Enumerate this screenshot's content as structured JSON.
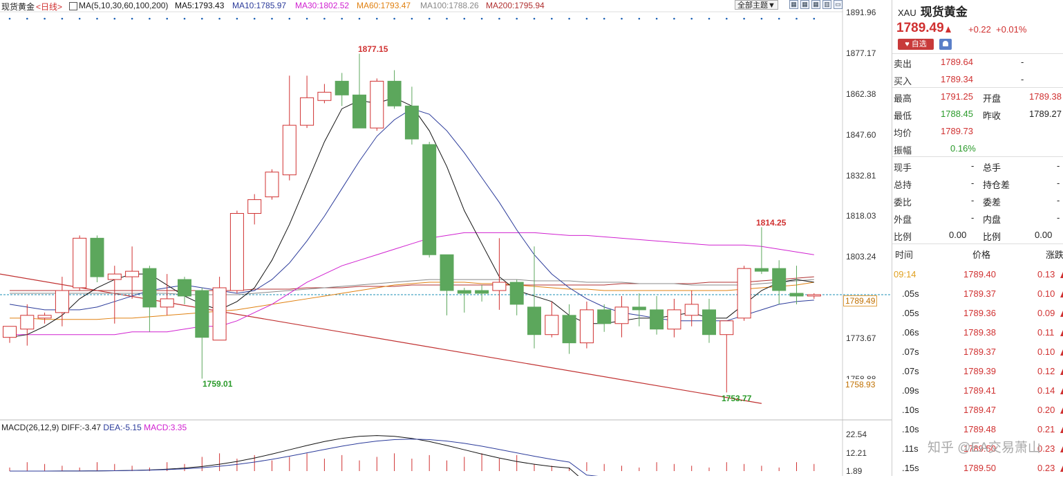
{
  "header": {
    "symbol": "现货黄金",
    "period": "<日线>",
    "ma_label": "MA(5,10,30,60,100,200)",
    "ma5": "MA5:1793.43",
    "ma10": "MA10:1785.97",
    "ma30": "MA30:1802.52",
    "ma60": "MA60:1793.47",
    "ma100": "MA100:1788.26",
    "ma200": "MA200:1795.94",
    "theme_button": "全部主题▼",
    "icons": [
      "grid-icon",
      "grid-add-icon",
      "grid-remove-icon",
      "window-icon"
    ]
  },
  "colors": {
    "up": "#d03030",
    "down": "#2a9a2a",
    "candle_down_fill": "#5ca75c",
    "ma5": "#111111",
    "ma10": "#2a3a9a",
    "ma30": "#d020d0",
    "ma60": "#e08010",
    "ma100": "#888888",
    "ma200": "#b03030"
  },
  "chart_data": {
    "type": "candlestick",
    "y_axis_labels": [
      "1891.96",
      "1877.17",
      "1862.38",
      "1847.60",
      "1832.81",
      "1818.03",
      "1803.24",
      "1773.67",
      "1758.88"
    ],
    "current_price_tag": "1789.49",
    "low_price_tag": "1758.93",
    "annotations": {
      "high1": "1877.15",
      "high2": "1814.25",
      "low1": "1759.01",
      "low2": "1753.77"
    },
    "candles": [
      {
        "o": 1774,
        "h": 1778,
        "l": 1772,
        "c": 1778
      },
      {
        "o": 1777,
        "h": 1786,
        "l": 1771,
        "c": 1782
      },
      {
        "o": 1781,
        "h": 1783,
        "l": 1779,
        "c": 1782
      },
      {
        "o": 1783,
        "h": 1796,
        "l": 1778,
        "c": 1791
      },
      {
        "o": 1792,
        "h": 1811,
        "l": 1791,
        "c": 1810
      },
      {
        "o": 1810,
        "h": 1811,
        "l": 1794,
        "c": 1796
      },
      {
        "o": 1795,
        "h": 1800,
        "l": 1779,
        "c": 1797
      },
      {
        "o": 1796,
        "h": 1807,
        "l": 1788,
        "c": 1798
      },
      {
        "o": 1799,
        "h": 1800,
        "l": 1776,
        "c": 1785
      },
      {
        "o": 1785,
        "h": 1797,
        "l": 1782,
        "c": 1788
      },
      {
        "o": 1795,
        "h": 1796,
        "l": 1786,
        "c": 1789
      },
      {
        "o": 1791,
        "h": 1792,
        "l": 1759,
        "c": 1774
      },
      {
        "o": 1773,
        "h": 1796,
        "l": 1773,
        "c": 1792
      },
      {
        "o": 1791,
        "h": 1820,
        "l": 1790,
        "c": 1819
      },
      {
        "o": 1819,
        "h": 1826,
        "l": 1815,
        "c": 1824
      },
      {
        "o": 1825,
        "h": 1835,
        "l": 1824,
        "c": 1834
      },
      {
        "o": 1833,
        "h": 1869,
        "l": 1831,
        "c": 1851
      },
      {
        "o": 1851,
        "h": 1869,
        "l": 1850,
        "c": 1861
      },
      {
        "o": 1860,
        "h": 1866,
        "l": 1859,
        "c": 1863
      },
      {
        "o": 1867,
        "h": 1870,
        "l": 1858,
        "c": 1862
      },
      {
        "o": 1862,
        "h": 1877,
        "l": 1850,
        "c": 1850
      },
      {
        "o": 1850,
        "h": 1868,
        "l": 1849,
        "c": 1867
      },
      {
        "o": 1867,
        "h": 1871,
        "l": 1857,
        "c": 1858
      },
      {
        "o": 1858,
        "h": 1865,
        "l": 1844,
        "c": 1846
      },
      {
        "o": 1844,
        "h": 1845,
        "l": 1803,
        "c": 1804
      },
      {
        "o": 1804,
        "h": 1804,
        "l": 1782,
        "c": 1791
      },
      {
        "o": 1791,
        "h": 1792,
        "l": 1783,
        "c": 1790
      },
      {
        "o": 1791,
        "h": 1793,
        "l": 1787,
        "c": 1790
      },
      {
        "o": 1791,
        "h": 1810,
        "l": 1784,
        "c": 1794
      },
      {
        "o": 1794,
        "h": 1795,
        "l": 1782,
        "c": 1786
      },
      {
        "o": 1785,
        "h": 1807,
        "l": 1770,
        "c": 1775
      },
      {
        "o": 1775,
        "h": 1787,
        "l": 1774,
        "c": 1782
      },
      {
        "o": 1782,
        "h": 1786,
        "l": 1768,
        "c": 1772
      },
      {
        "o": 1772,
        "h": 1787,
        "l": 1770,
        "c": 1784
      },
      {
        "o": 1784,
        "h": 1786,
        "l": 1776,
        "c": 1779
      },
      {
        "o": 1779,
        "h": 1789,
        "l": 1774,
        "c": 1785
      },
      {
        "o": 1785,
        "h": 1790,
        "l": 1778,
        "c": 1784
      },
      {
        "o": 1784,
        "h": 1789,
        "l": 1775,
        "c": 1777
      },
      {
        "o": 1777,
        "h": 1788,
        "l": 1774,
        "c": 1784
      },
      {
        "o": 1782,
        "h": 1791,
        "l": 1778,
        "c": 1786
      },
      {
        "o": 1784,
        "h": 1788,
        "l": 1772,
        "c": 1775
      },
      {
        "o": 1775,
        "h": 1780,
        "l": 1754,
        "c": 1780
      },
      {
        "o": 1781,
        "h": 1800,
        "l": 1780,
        "c": 1799
      },
      {
        "o": 1799,
        "h": 1814,
        "l": 1797,
        "c": 1798
      },
      {
        "o": 1799,
        "h": 1802,
        "l": 1786,
        "c": 1791
      },
      {
        "o": 1790,
        "h": 1800,
        "l": 1786,
        "c": 1789
      },
      {
        "o": 1789,
        "h": 1790,
        "l": 1788,
        "c": 1789.5
      }
    ],
    "ma5": [
      1774,
      1775,
      1778,
      1782,
      1788,
      1792,
      1795,
      1797,
      1797,
      1793,
      1789,
      1786,
      1784,
      1787,
      1792,
      1802,
      1815,
      1830,
      1845,
      1857,
      1860,
      1859,
      1861,
      1858,
      1849,
      1836,
      1820,
      1808,
      1796,
      1791,
      1789,
      1787,
      1782,
      1779,
      1779,
      1780,
      1781,
      1781,
      1782,
      1783,
      1781,
      1781,
      1786,
      1791,
      1794,
      1795,
      1794
    ],
    "ma10": [
      1786,
      1785,
      1784,
      1784,
      1784,
      1785,
      1787,
      1789,
      1791,
      1792,
      1793,
      1792,
      1791,
      1790,
      1791,
      1795,
      1801,
      1809,
      1818,
      1828,
      1838,
      1847,
      1853,
      1857,
      1855,
      1849,
      1841,
      1832,
      1823,
      1813,
      1804,
      1797,
      1792,
      1788,
      1785,
      1783,
      1782,
      1781,
      1780,
      1780,
      1780,
      1780,
      1782,
      1784,
      1786,
      1787,
      1787.5
    ],
    "ma30": [
      1775,
      1775,
      1775,
      1775,
      1775,
      1775,
      1775,
      1776,
      1776,
      1776,
      1777,
      1778,
      1778,
      1780,
      1783,
      1786,
      1790,
      1794,
      1797,
      1800,
      1802,
      1804,
      1806,
      1808,
      1810,
      1811,
      1812,
      1812,
      1812,
      1812,
      1812,
      1811.5,
      1811,
      1811,
      1810.5,
      1810,
      1809.5,
      1809,
      1808.5,
      1808,
      1807.5,
      1807.5,
      1807.5,
      1807,
      1806,
      1805,
      1804
    ],
    "ma60": [
      1781,
      1781,
      1780.5,
      1780.5,
      1780.5,
      1780.5,
      1781,
      1781,
      1781.5,
      1782,
      1782.5,
      1783,
      1783.5,
      1784,
      1785,
      1786,
      1787,
      1788,
      1789,
      1790,
      1791,
      1792,
      1793,
      1793.5,
      1794,
      1794,
      1794,
      1793.5,
      1793.5,
      1793,
      1792.5,
      1792,
      1791.5,
      1791.5,
      1791,
      1791,
      1791,
      1791,
      1791,
      1791,
      1791,
      1791,
      1791.5,
      1792,
      1792.5,
      1793,
      1794
    ],
    "ma100": [
      1790,
      1790,
      1790,
      1790,
      1790,
      1790,
      1790,
      1790,
      1790,
      1790,
      1789.5,
      1789.5,
      1789.5,
      1789.5,
      1790,
      1790.5,
      1791,
      1791.5,
      1792,
      1792.5,
      1793,
      1793.5,
      1794,
      1794.5,
      1795,
      1795,
      1795,
      1795,
      1795,
      1795,
      1794.5,
      1794.5,
      1794.5,
      1794,
      1794,
      1794,
      1793.5,
      1793.5,
      1793.5,
      1793,
      1793,
      1793,
      1793,
      1793.5,
      1794,
      1794.5,
      1795
    ],
    "ma200": [
      1791,
      1791,
      1791,
      1791,
      1791,
      1791,
      1791,
      1791,
      1791,
      1791,
      1791,
      1791,
      1791,
      1791,
      1791.5,
      1791.5,
      1791.5,
      1792,
      1792,
      1792,
      1792.5,
      1792.5,
      1792.5,
      1793,
      1793,
      1793,
      1793,
      1793,
      1793,
      1793,
      1793,
      1793,
      1793,
      1793,
      1793,
      1793.5,
      1793.5,
      1793.5,
      1793.5,
      1793.5,
      1794,
      1794,
      1794,
      1794.5,
      1795,
      1795.5,
      1796
    ],
    "trendline": [
      [
        0,
        1797
      ],
      [
        43,
        1750
      ]
    ],
    "macd_label": "MACD(26,12,9)",
    "diff_label": "DIFF:-3.47",
    "dea_label": "DEA:-5.15",
    "macd_val_label": "MACD:3.35",
    "macd_axis_labels": [
      "22.54",
      "12.21",
      "1.89"
    ]
  },
  "sidebar": {
    "code": "XAU",
    "name": "现货黄金",
    "price": "1789.49",
    "change": "+0.22",
    "change_pct": "+0.01%",
    "fav_label": "♥ 自选",
    "sell_label": "卖出",
    "sell_val": "1789.64",
    "sell_dash": "-",
    "buy_label": "买入",
    "buy_val": "1789.34",
    "buy_dash": "-",
    "high_label": "最高",
    "high_val": "1791.25",
    "open_label": "开盘",
    "open_val": "1789.38",
    "low_label": "最低",
    "low_val": "1788.45",
    "prev_label": "昨收",
    "prev_val": "1789.27",
    "avg_label": "均价",
    "avg_val": "1789.73",
    "amp_label": "振幅",
    "amp_val": "0.16%",
    "stats": [
      {
        "k1": "现手",
        "v1": "-",
        "k2": "总手",
        "v2": "-"
      },
      {
        "k1": "总持",
        "v1": "-",
        "k2": "持仓差",
        "v2": "-"
      },
      {
        "k1": "委比",
        "v1": "-",
        "k2": "委差",
        "v2": "-"
      },
      {
        "k1": "外盘",
        "v1": "-",
        "k2": "内盘",
        "v2": "-"
      },
      {
        "k1": "比例",
        "v1": "0.00",
        "k2": "比例",
        "v2": "0.00"
      }
    ],
    "tick_header": {
      "time": "时间",
      "price": "价格",
      "change": "涨跌"
    },
    "ticks": [
      {
        "t": "09:14",
        "p": "1789.40",
        "c": "0.13"
      },
      {
        "t": ".05s",
        "p": "1789.37",
        "c": "0.10"
      },
      {
        "t": ".05s",
        "p": "1789.36",
        "c": "0.09"
      },
      {
        "t": ".06s",
        "p": "1789.38",
        "c": "0.11"
      },
      {
        "t": ".07s",
        "p": "1789.37",
        "c": "0.10"
      },
      {
        "t": ".07s",
        "p": "1789.39",
        "c": "0.12"
      },
      {
        "t": ".09s",
        "p": "1789.41",
        "c": "0.14"
      },
      {
        "t": ".10s",
        "p": "1789.47",
        "c": "0.20"
      },
      {
        "t": ".10s",
        "p": "1789.48",
        "c": "0.21"
      },
      {
        "t": ".11s",
        "p": "1789.50",
        "c": "0.23"
      },
      {
        "t": ".15s",
        "p": "1789.50",
        "c": "0.23"
      }
    ],
    "watermark": "知乎 @EA交易萧山"
  }
}
